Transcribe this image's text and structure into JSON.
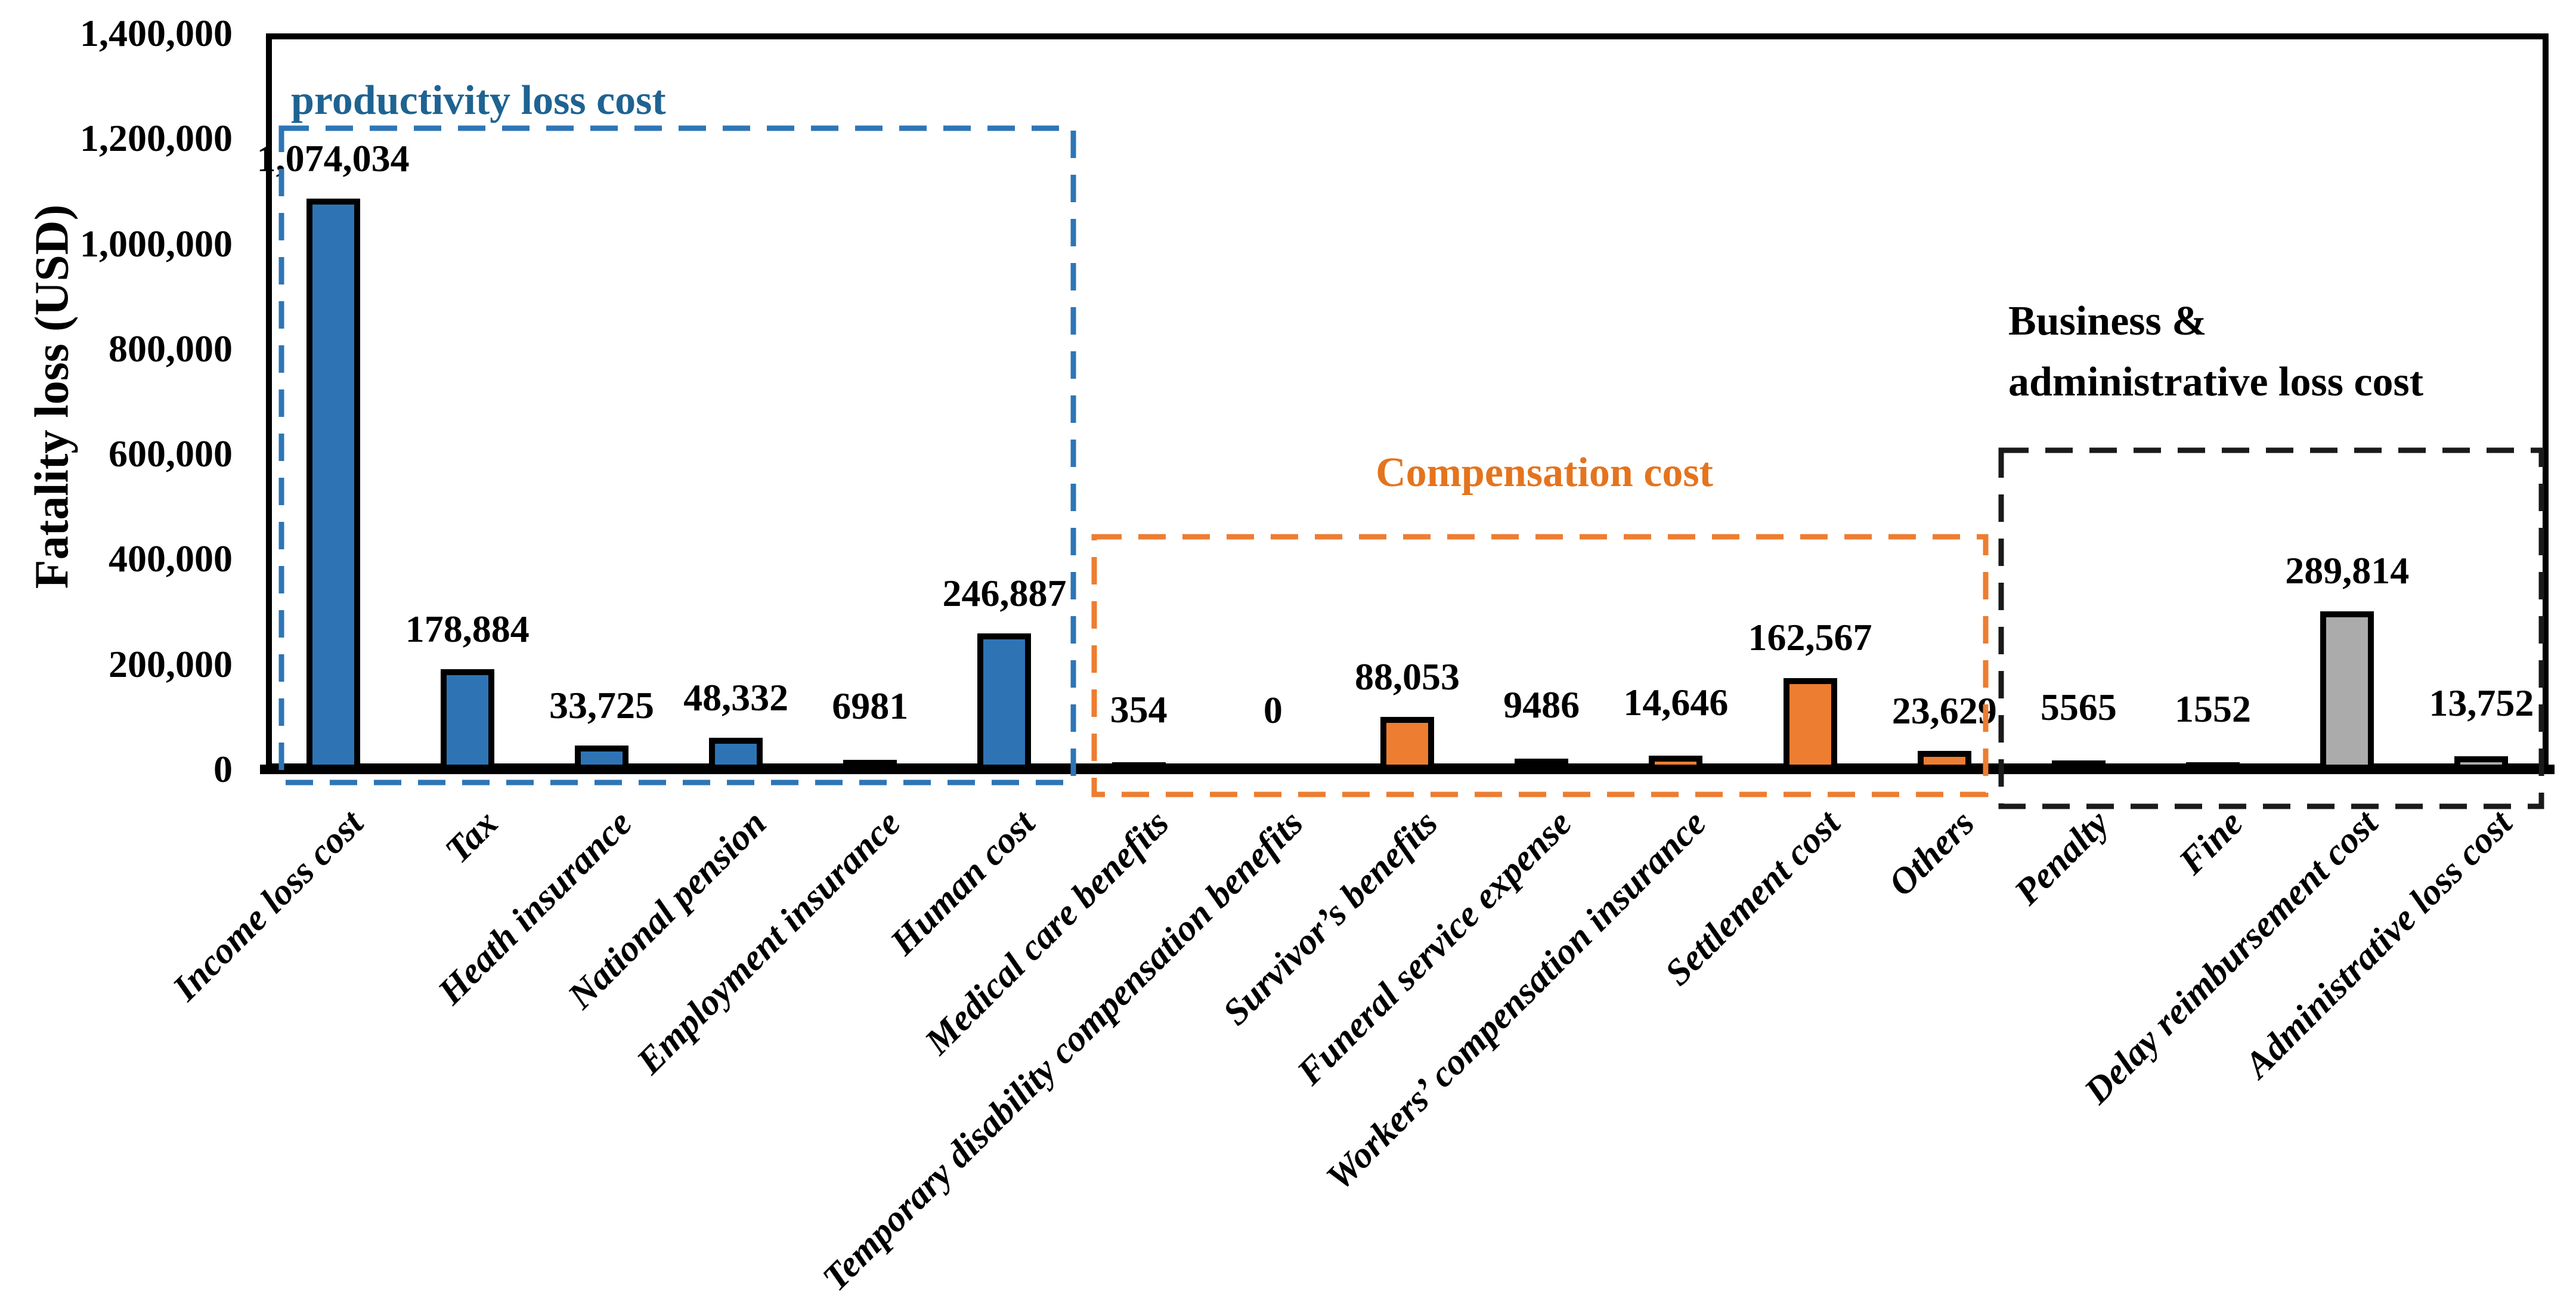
{
  "chart_data": {
    "type": "bar",
    "title": "",
    "xlabel": "",
    "ylabel": "Fatality loss (USD)",
    "ylim": [
      0,
      1400000
    ],
    "ytick_step": 200000,
    "yticks": [
      "1,400,000",
      "1,200,000",
      "1,000,000",
      "800,000",
      "600,000",
      "400,000",
      "200,000",
      "0"
    ],
    "grid": false,
    "legend": "none",
    "bars": [
      {
        "label": "Income loss cost",
        "value": 1074034,
        "value_label": "1,074,034",
        "group": "productivity"
      },
      {
        "label": "Tax",
        "value": 178884,
        "value_label": "178,884",
        "group": "productivity"
      },
      {
        "label": "Heath insurance",
        "value": 33725,
        "value_label": "33,725",
        "group": "productivity"
      },
      {
        "label": "National pension",
        "value": 48332,
        "value_label": "48,332",
        "group": "productivity"
      },
      {
        "label": "Employment insurance",
        "value": 6981,
        "value_label": "6981",
        "group": "productivity"
      },
      {
        "label": "Human cost",
        "value": 246887,
        "value_label": "246,887",
        "group": "productivity"
      },
      {
        "label": "Medical care benefits",
        "value": 354,
        "value_label": "354",
        "group": "compensation"
      },
      {
        "label": "Temporary disability compensation benefits",
        "value": 0,
        "value_label": "0",
        "group": "compensation"
      },
      {
        "label": "Survivor’s benefits",
        "value": 88053,
        "value_label": "88,053",
        "group": "compensation"
      },
      {
        "label": "Funeral service expense",
        "value": 9486,
        "value_label": "9486",
        "group": "compensation"
      },
      {
        "label": "Workers’ compensation insurance",
        "value": 14646,
        "value_label": "14,646",
        "group": "compensation"
      },
      {
        "label": "Settlement cost",
        "value": 162567,
        "value_label": "162,567",
        "group": "compensation"
      },
      {
        "label": "Others",
        "value": 23629,
        "value_label": "23,629",
        "group": "compensation"
      },
      {
        "label": "Penalty",
        "value": 5565,
        "value_label": "5565",
        "group": "business"
      },
      {
        "label": "Fine",
        "value": 1552,
        "value_label": "1552",
        "group": "business"
      },
      {
        "label": "Delay reimbursement cost",
        "value": 289814,
        "value_label": "289,814",
        "group": "business"
      },
      {
        "label": "Administrative loss cost",
        "value": 13752,
        "value_label": "13,752",
        "group": "business"
      }
    ],
    "groups": [
      {
        "id": "productivity",
        "title": "productivity loss cost",
        "bar_color": "#2E74B5",
        "line_color": "#2E75B6",
        "title_color": "#1F6391"
      },
      {
        "id": "compensation",
        "title": "Compensation cost",
        "bar_color": "#ED7D31",
        "line_color": "#ED7D31",
        "title_color": "#E4741E"
      },
      {
        "id": "business",
        "title": "Business &\nadministrative loss cost",
        "bar_color": "#ABABAB",
        "line_color": "#1A1A1A",
        "title_color": "#000000"
      }
    ],
    "bar_outline_color": "#000000",
    "layout_hint": "three dashed group boxes around bar clusters, x labels rotated 45deg"
  }
}
